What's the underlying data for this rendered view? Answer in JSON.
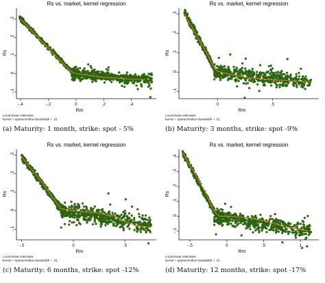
{
  "colors": {
    "points": "#2f6b12",
    "points_stroke": "#1f4f08",
    "fit_line": "#d9822b",
    "axis": "#111111",
    "background": "#ffffff"
  },
  "chart_data": [
    {
      "type": "scatter",
      "title": "Rs vs. market, kernel regression",
      "xlabel": "Rm",
      "ylabel": "Rs",
      "xlim": [
        -0.43,
        0.58
      ],
      "ylim": [
        -0.13,
        0.36
      ],
      "xticks": [
        "-.4",
        "-.2",
        "0",
        ".2",
        ".4"
      ],
      "xtick_values": [
        -0.4,
        -0.2,
        0,
        0.2,
        0.4
      ],
      "yticks": [
        ".3",
        ".2",
        ".1",
        "0",
        "-.1"
      ],
      "ytick_values": [
        0.3,
        0.2,
        0.1,
        0,
        -0.1
      ],
      "notes": [
        "Local-linear estimates",
        "kernel = epanechnikov bandwidth = .01"
      ],
      "caption": "(a) Maturity: 1 month, strike: spot - 5%",
      "fit_line": {
        "x": [
          -0.4,
          -0.3,
          -0.2,
          -0.1,
          -0.03,
          0.0,
          0.05,
          0.1,
          0.2,
          0.3,
          0.4,
          0.5
        ],
        "y": [
          0.3,
          0.22,
          0.14,
          0.06,
          0.01,
          0.0,
          -0.005,
          -0.01,
          -0.02,
          -0.025,
          -0.03,
          -0.032
        ]
      },
      "scatter_clusters": [
        {
          "x": [
            -0.41,
            -0.03
          ],
          "y_center": [
            0.31,
            0.01
          ],
          "spread": 0.012
        },
        {
          "x": [
            -0.03,
            0.55
          ],
          "y_center": [
            0.0,
            -0.035
          ],
          "spread": 0.028
        }
      ]
    },
    {
      "type": "scatter",
      "title": "Rs vs. market, kernel regression",
      "xlabel": "Rm",
      "ylabel": "Rs",
      "xlim": [
        -0.35,
        0.92
      ],
      "ylim": [
        -0.13,
        0.33
      ],
      "xticks": [
        "0",
        ".5"
      ],
      "xtick_values": [
        0,
        0.5
      ],
      "yticks": [
        ".3",
        ".2",
        ".1",
        "0",
        "-.1"
      ],
      "ytick_values": [
        0.3,
        0.2,
        0.1,
        0,
        -0.1
      ],
      "notes": [
        "Local-linear estimates",
        "kernel = epanechnikov bandwidth = .01"
      ],
      "caption": "(b) Maturity: 3 months, strike: spot -9%",
      "fit_line": {
        "x": [
          -0.3,
          -0.2,
          -0.1,
          -0.03,
          0.0,
          0.1,
          0.3,
          0.5,
          0.7,
          0.85
        ],
        "y": [
          0.3,
          0.2,
          0.1,
          0.02,
          0.005,
          -0.01,
          -0.03,
          -0.04,
          -0.045,
          -0.05
        ]
      },
      "scatter_clusters": [
        {
          "x": [
            -0.3,
            -0.03
          ],
          "y_center": [
            0.31,
            0.02
          ],
          "spread": 0.02
        },
        {
          "x": [
            -0.03,
            0.85
          ],
          "y_center": [
            0.0,
            -0.05
          ],
          "spread": 0.035
        }
      ]
    },
    {
      "type": "scatter",
      "title": "Rs vs. market, kernel regression",
      "xlabel": "Rm",
      "ylabel": "Rs",
      "xlim": [
        -0.55,
        0.8
      ],
      "ylim": [
        -0.15,
        0.33
      ],
      "xticks": [
        "-.5",
        "0",
        ".5"
      ],
      "xtick_values": [
        -0.5,
        0,
        0.5
      ],
      "yticks": [
        ".3",
        ".2",
        ".1",
        "0",
        "-.1"
      ],
      "ytick_values": [
        0.3,
        0.2,
        0.1,
        0,
        -0.1
      ],
      "notes": [
        "Local-linear estimates",
        "kernel = epanechnikov bandwidth = .01"
      ],
      "caption": "(c) Maturity: 6 months, strike: spot -12%",
      "fit_line": {
        "x": [
          -0.5,
          -0.4,
          -0.3,
          -0.2,
          -0.12,
          0.0,
          0.2,
          0.4,
          0.5,
          0.6,
          0.75
        ],
        "y": [
          0.29,
          0.22,
          0.15,
          0.07,
          0.01,
          0.0,
          -0.01,
          -0.03,
          -0.06,
          -0.08,
          -0.09
        ]
      },
      "scatter_clusters": [
        {
          "x": [
            -0.5,
            -0.12
          ],
          "y_center": [
            0.29,
            0.01
          ],
          "spread": 0.02
        },
        {
          "x": [
            -0.12,
            0.75
          ],
          "y_center": [
            0.0,
            -0.08
          ],
          "spread": 0.04
        }
      ]
    },
    {
      "type": "scatter",
      "title": "Rs vs. market, kernel regression",
      "xlabel": "Rm",
      "ylabel": "Rs",
      "xlim": [
        -0.65,
        1.25
      ],
      "ylim": [
        -0.15,
        0.45
      ],
      "xticks": [
        "-.5",
        "0",
        ".5",
        "1"
      ],
      "xtick_values": [
        -0.5,
        0,
        0.5,
        1
      ],
      "yticks": [
        ".4",
        ".3",
        ".2",
        ".1",
        "0",
        "-.1"
      ],
      "ytick_values": [
        0.4,
        0.3,
        0.2,
        0.1,
        0,
        -0.1
      ],
      "notes": [
        "Local-linear estimates",
        "kernel = epanechnikov bandwidth = .01"
      ],
      "caption": "(d) Maturity: 12 months, strike: spot -17%",
      "fit_line": {
        "x": [
          -0.6,
          -0.45,
          -0.3,
          -0.17,
          -0.1,
          0.0,
          0.3,
          0.5,
          0.8,
          1.1
        ],
        "y": [
          0.43,
          0.3,
          0.17,
          0.03,
          0.0,
          0.0,
          -0.01,
          -0.03,
          -0.07,
          -0.1
        ]
      },
      "scatter_clusters": [
        {
          "x": [
            -0.6,
            -0.17
          ],
          "y_center": [
            0.43,
            0.03
          ],
          "spread": 0.02
        },
        {
          "x": [
            -0.17,
            1.15
          ],
          "y_center": [
            0.0,
            -0.1
          ],
          "spread": 0.045
        }
      ]
    }
  ]
}
